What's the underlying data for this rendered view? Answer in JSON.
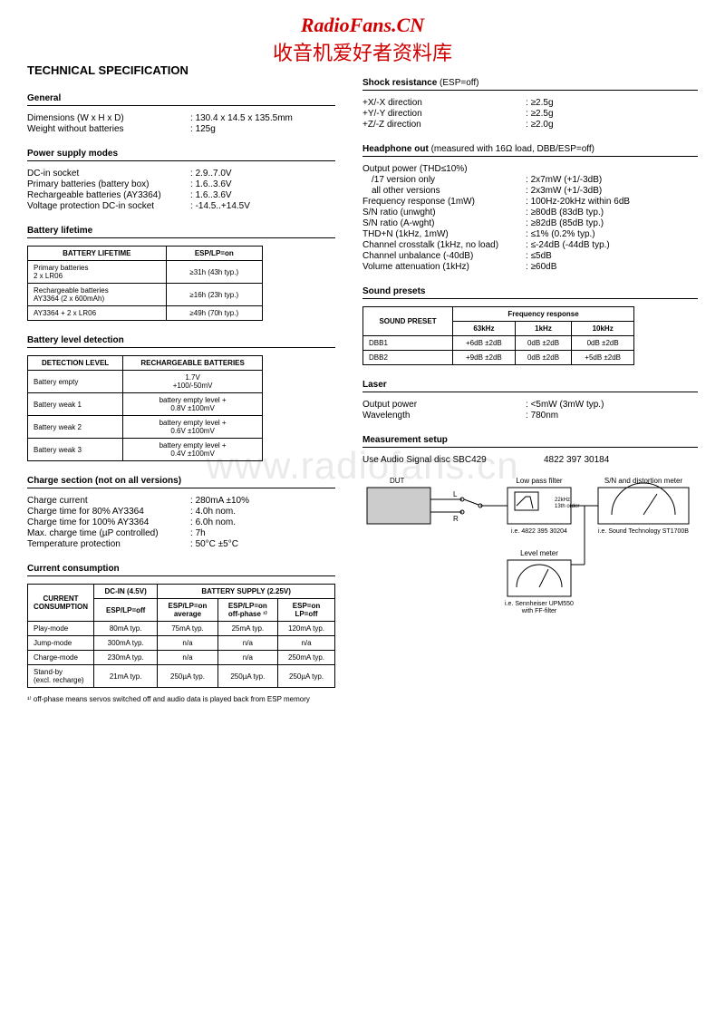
{
  "watermark": {
    "en": "RadioFans.CN",
    "cn": "收音机爱好者资料库",
    "mid": "www.radiofans.cn"
  },
  "title": "TECHNICAL SPECIFICATION",
  "sections": {
    "general": {
      "heading": "General",
      "rows": [
        {
          "k": "Dimensions (W x H x D)",
          "v": "130.4 x 14.5 x 135.5mm"
        },
        {
          "k": "Weight without batteries",
          "v": "125g"
        }
      ]
    },
    "power_supply": {
      "heading": "Power supply modes",
      "rows": [
        {
          "k": "DC-in socket",
          "v": "2.9..7.0V"
        },
        {
          "k": "Primary batteries (battery box)",
          "v": "1.6..3.6V"
        },
        {
          "k": "Rechargeable batteries (AY3364)",
          "v": "1.6..3.6V"
        },
        {
          "k": "Voltage protection DC-in socket",
          "v": "-14.5..+14.5V"
        }
      ]
    },
    "battery_lifetime": {
      "heading": "Battery lifetime",
      "table": {
        "headers": [
          "BATTERY LIFETIME",
          "ESP/LP=on"
        ],
        "rows": [
          [
            "Primary batteries\n2 x LR06",
            "≥31h (43h typ.)"
          ],
          [
            "Rechargeable batteries\nAY3364 (2 x 600mAh)",
            "≥16h (23h typ.)"
          ],
          [
            "AY3364 + 2 x LR06",
            "≥49h (70h typ.)"
          ]
        ]
      }
    },
    "battery_level": {
      "heading": "Battery level detection",
      "table": {
        "headers": [
          "DETECTION LEVEL",
          "RECHARGEABLE BATTERIES"
        ],
        "rows": [
          [
            "Battery empty",
            "1.7V\n+100/-50mV"
          ],
          [
            "Battery weak 1",
            "battery empty level +\n0.8V ±100mV"
          ],
          [
            "Battery weak 2",
            "battery empty level +\n0.6V ±100mV"
          ],
          [
            "Battery weak 3",
            "battery empty level +\n0.4V ±100mV"
          ]
        ]
      }
    },
    "charge": {
      "heading": "Charge section (not on all versions)",
      "rows": [
        {
          "k": "Charge current",
          "v": "280mA ±10%"
        },
        {
          "k": "Charge time for 80% AY3364",
          "v": "4.0h nom."
        },
        {
          "k": "Charge time for 100% AY3364",
          "v": "6.0h nom."
        },
        {
          "k": "Max. charge time (µP controlled)",
          "v": "7h"
        },
        {
          "k": "Temperature protection",
          "v": "50°C ±5°C"
        }
      ]
    },
    "current": {
      "heading": "Current consumption",
      "table": {
        "col_group1": "DC-IN (4.5V)",
        "col_group2": "BATTERY SUPPLY (2.25V)",
        "row_header": "CURRENT\nCONSUMPTION",
        "subheaders": [
          "ESP/LP=off",
          "ESP/LP=on\naverage",
          "ESP/LP=on\noff-phase ¹⁾",
          "ESP=on\nLP=off"
        ],
        "rows": [
          [
            "Play-mode",
            "80mA typ.",
            "75mA typ.",
            "25mA typ.",
            "120mA typ."
          ],
          [
            "Jump-mode",
            "300mA typ.",
            "n/a",
            "n/a",
            "n/a"
          ],
          [
            "Charge-mode",
            "230mA typ.",
            "n/a",
            "n/a",
            "250mA typ."
          ],
          [
            "Stand-by\n(excl. recharge)",
            "21mA typ.",
            "250µA typ.",
            "250µA typ.",
            "250µA typ."
          ]
        ]
      },
      "footnote": "¹⁾ off-phase means servos switched off and audio data is played back from ESP memory"
    },
    "shock": {
      "heading": "Shock resistance",
      "heading_sub": "(ESP=off)",
      "rows": [
        {
          "k": "+X/-X direction",
          "v": "≥2.5g"
        },
        {
          "k": "+Y/-Y direction",
          "v": "≥2.5g"
        },
        {
          "k": "+Z/-Z direction",
          "v": "≥2.0g"
        }
      ]
    },
    "headphone": {
      "heading": "Headphone out",
      "heading_sub": "(measured with 16Ω load, DBB/ESP=off)",
      "rows": [
        {
          "k": "Output power (THD≤10%)",
          "v": ""
        },
        {
          "k": "/17 version only",
          "v": "2x7mW (+1/-3dB)",
          "indent": true
        },
        {
          "k": "all other versions",
          "v": "2x3mW (+1/-3dB)",
          "indent": true
        },
        {
          "k": "Frequency response (1mW)",
          "v": "100Hz-20kHz within 6dB"
        },
        {
          "k": "S/N ratio (unwght)",
          "v": "≥80dB (83dB typ.)"
        },
        {
          "k": "S/N ratio (A-wght)",
          "v": "≥82dB (85dB typ.)"
        },
        {
          "k": "THD+N (1kHz, 1mW)",
          "v": "≤1% (0.2% typ.)"
        },
        {
          "k": "Channel crosstalk (1kHz, no load)",
          "v": "≤-24dB (-44dB typ.)"
        },
        {
          "k": "Channel unbalance (-40dB)",
          "v": "≤5dB"
        },
        {
          "k": "Volume attenuation (1kHz)",
          "v": "≥60dB"
        }
      ]
    },
    "sound_presets": {
      "heading": "Sound presets",
      "table": {
        "group_header": "Frequency response",
        "row_header": "SOUND PRESET",
        "subheaders": [
          "63kHz",
          "1kHz",
          "10kHz"
        ],
        "rows": [
          [
            "DBB1",
            "+6dB ±2dB",
            "0dB ±2dB",
            "0dB ±2dB"
          ],
          [
            "DBB2",
            "+9dB ±2dB",
            "0dB ±2dB",
            "+5dB ±2dB"
          ]
        ]
      }
    },
    "laser": {
      "heading": "Laser",
      "rows": [
        {
          "k": "Output power",
          "v": "<5mW (3mW typ.)"
        },
        {
          "k": "Wavelength",
          "v": "780nm"
        }
      ]
    },
    "measurement": {
      "heading": "Measurement setup",
      "line1_l": "Use Audio Signal disc SBC429",
      "line1_r": "4822 397 30184",
      "diagram": {
        "dut": "DUT",
        "l": "L",
        "r": "R",
        "lpf": "Low pass filter",
        "lpf_sub": "22kHz\n13th order",
        "lpf_note": "i.e. 4822 395 30204",
        "sn": "S/N and distortion meter",
        "sn_note": "i.e. Sound Technology ST1700B",
        "lvl": "Level meter",
        "lvl_note": "i.e. Sennheiser UPM550\nwith FF-filter"
      }
    }
  }
}
